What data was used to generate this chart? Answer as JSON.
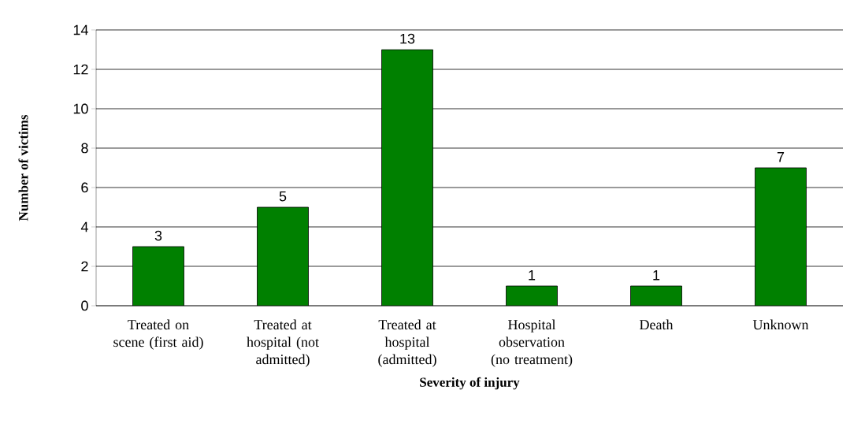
{
  "chart_data": {
    "type": "bar",
    "xlabel": "Severity of injury",
    "ylabel": "Number of victims",
    "categories": [
      "Treated on scene (first aid)",
      "Treated at hospital (not admitted)",
      "Treated at hospital (admitted)",
      "Hospital observation (no treatment)",
      "Death",
      "Unknown"
    ],
    "values": [
      3,
      5,
      13,
      1,
      1,
      7
    ],
    "color": "#008000",
    "ylim": [
      0,
      14
    ],
    "yticks": [
      0,
      2,
      4,
      6,
      8,
      10,
      12,
      14
    ],
    "grid": "y",
    "data_labels": true
  }
}
